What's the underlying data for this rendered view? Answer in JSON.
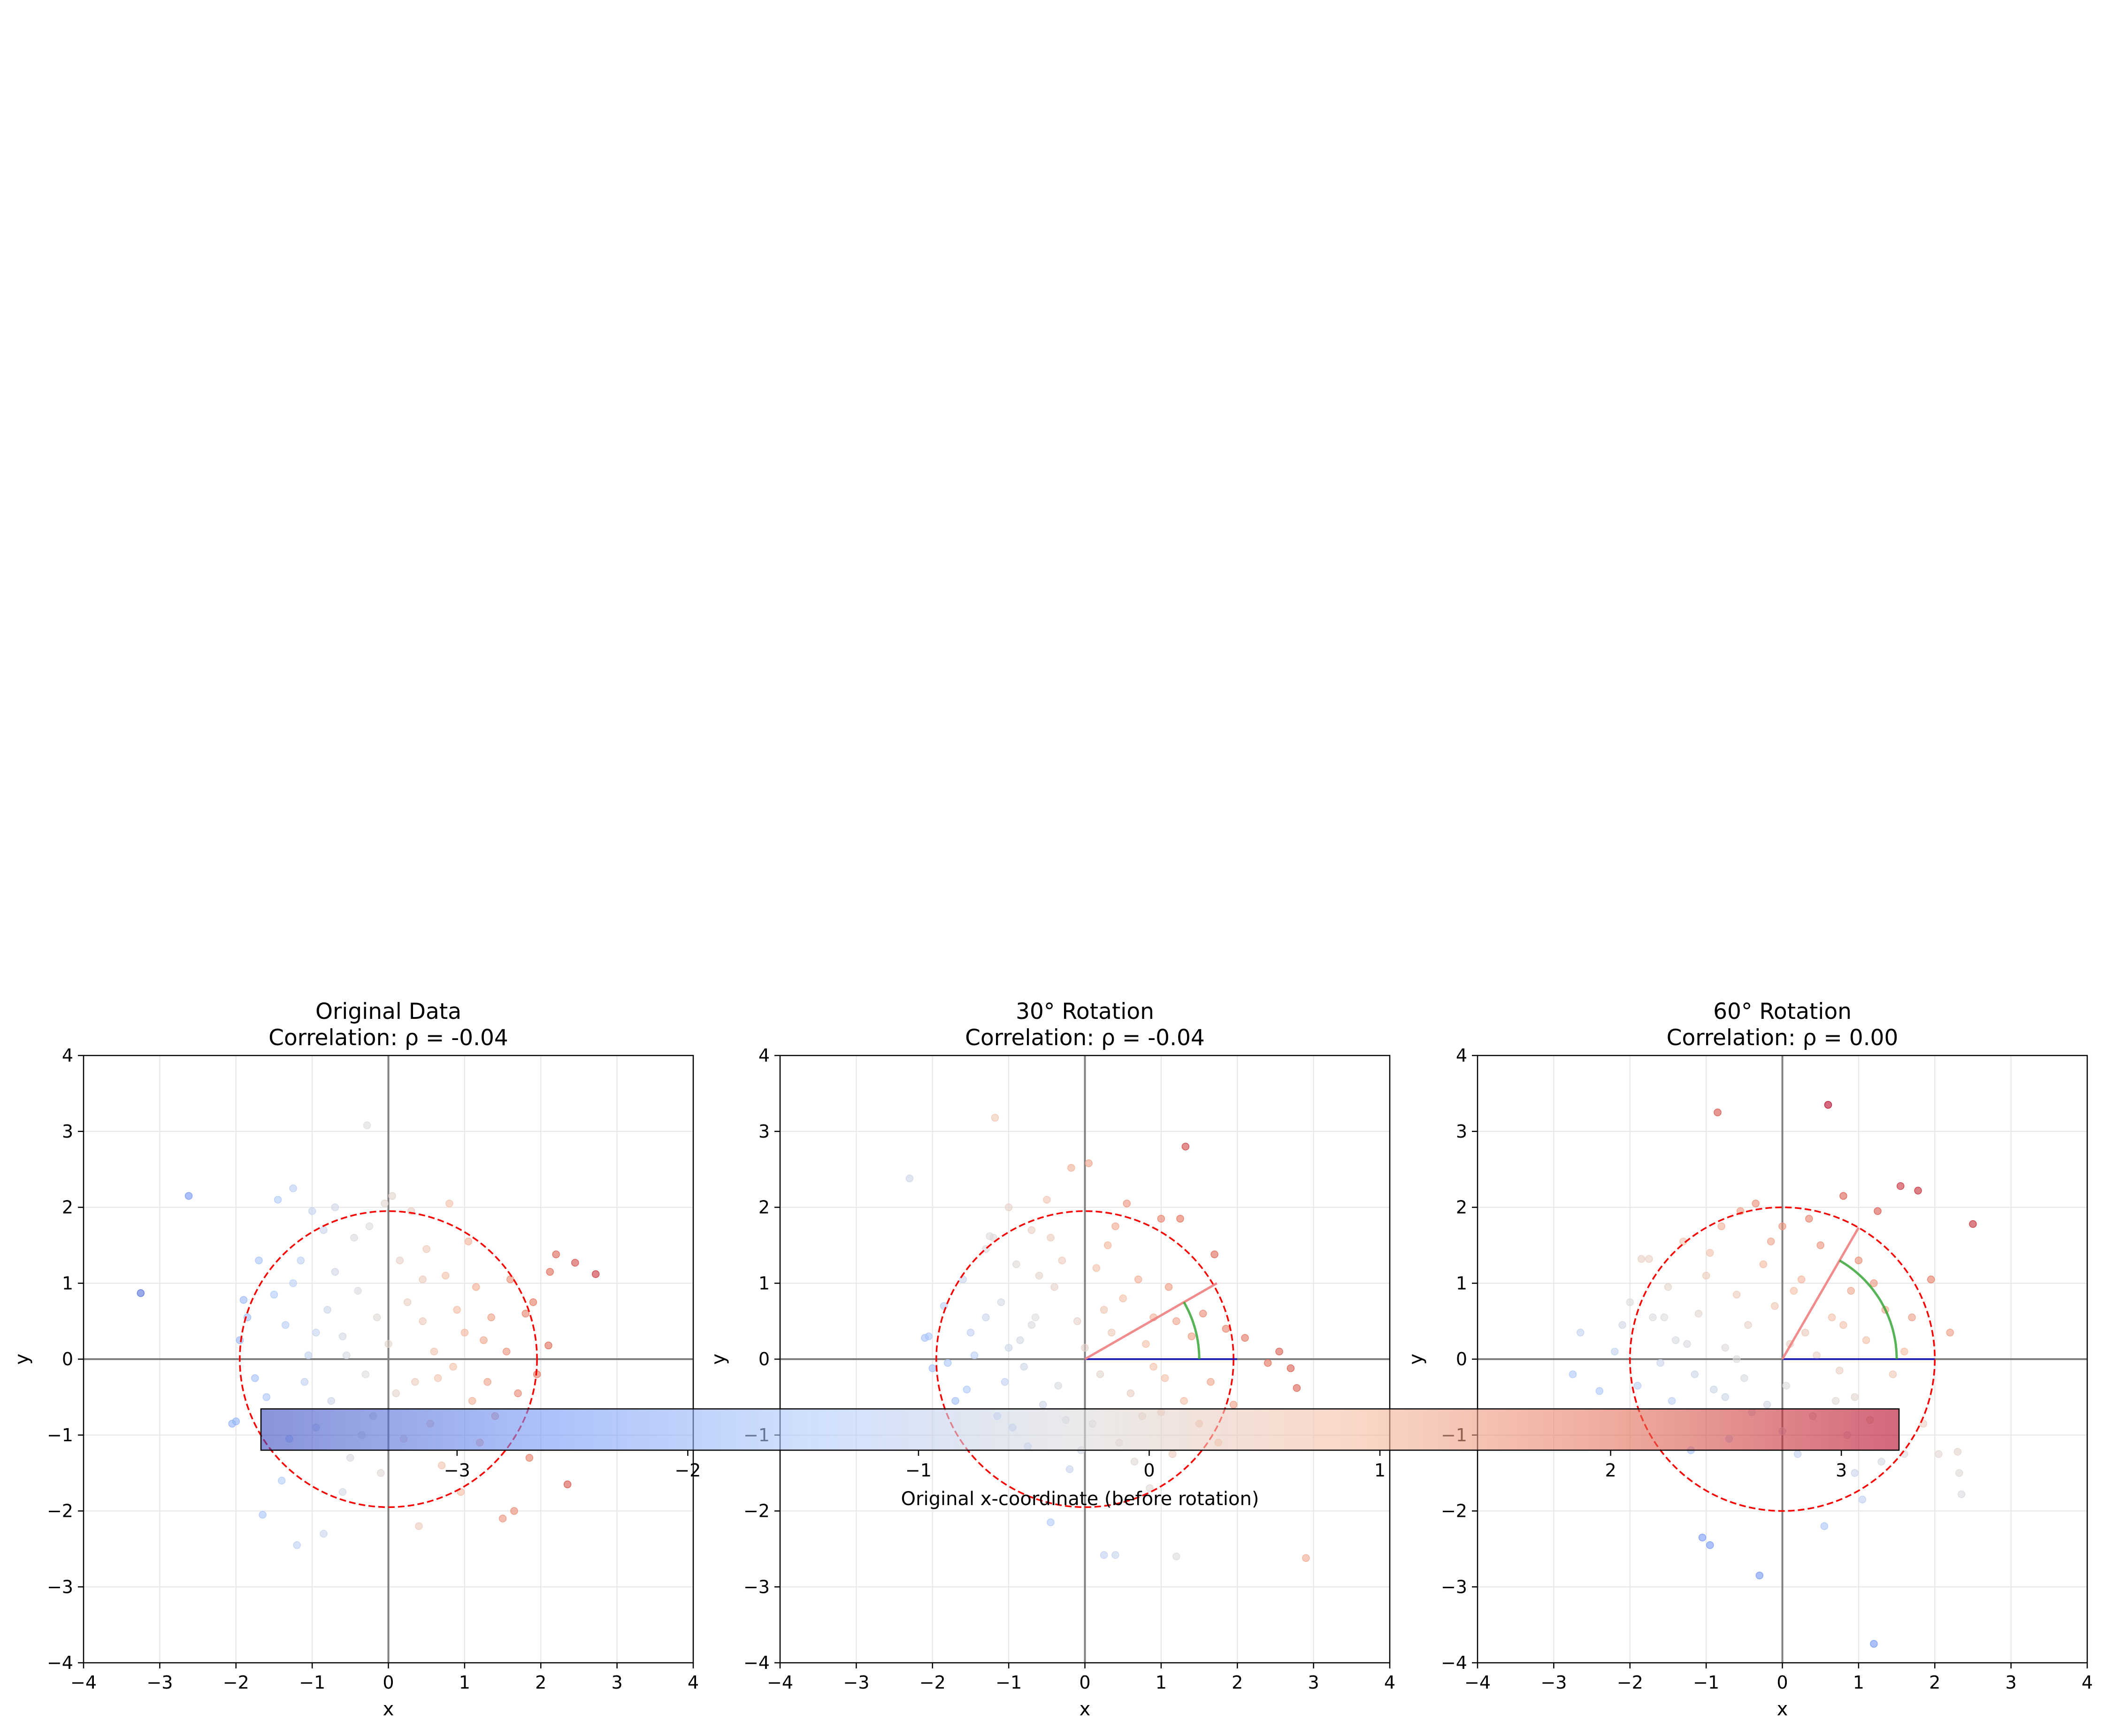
{
  "chart_data": [
    {
      "type": "scatter",
      "title": "Original Data\nCorrelation: ρ = -0.04",
      "title_lines": [
        "Original Data",
        "Correlation: ρ = -0.04"
      ],
      "xlabel": "x",
      "ylabel": "y",
      "xlim": [
        -4,
        4
      ],
      "ylim": [
        -4,
        4
      ],
      "xticks": [
        "−4",
        "−3",
        "−2",
        "−1",
        "0",
        "1",
        "2",
        "3",
        "4"
      ],
      "yticks": [
        "−4",
        "−3",
        "−2",
        "−1",
        "0",
        "1",
        "2",
        "3",
        "4"
      ],
      "grid": true,
      "rotation_deg": 0,
      "circle_radius": 1.95,
      "points": [
        [
          -3.25,
          0.87
        ],
        [
          -2.62,
          2.15
        ],
        [
          -2.05,
          -0.85
        ],
        [
          -2.0,
          -0.82
        ],
        [
          -1.95,
          0.25
        ],
        [
          -1.9,
          0.78
        ],
        [
          -1.85,
          0.55
        ],
        [
          -1.75,
          -0.25
        ],
        [
          -1.7,
          1.3
        ],
        [
          -1.65,
          -2.05
        ],
        [
          -1.5,
          0.85
        ],
        [
          -1.45,
          2.1
        ],
        [
          -1.4,
          -1.6
        ],
        [
          -1.35,
          0.45
        ],
        [
          -1.25,
          2.25
        ],
        [
          -1.2,
          -2.45
        ],
        [
          -1.15,
          1.3
        ],
        [
          -1.1,
          -0.3
        ],
        [
          -1.05,
          0.05
        ],
        [
          -1.0,
          1.95
        ],
        [
          -0.95,
          -0.9
        ],
        [
          -0.85,
          1.7
        ],
        [
          -0.85,
          -2.3
        ],
        [
          -0.8,
          0.65
        ],
        [
          -0.75,
          -0.55
        ],
        [
          -0.7,
          1.15
        ],
        [
          -0.6,
          0.3
        ],
        [
          -0.5,
          -1.3
        ],
        [
          -0.45,
          1.6
        ],
        [
          -0.4,
          0.9
        ],
        [
          -0.3,
          -0.2
        ],
        [
          -0.28,
          3.08
        ],
        [
          -0.25,
          1.75
        ],
        [
          -0.2,
          -0.75
        ],
        [
          -0.15,
          0.55
        ],
        [
          -0.1,
          -1.5
        ],
        [
          -0.05,
          2.05
        ],
        [
          0.0,
          0.2
        ],
        [
          0.05,
          2.15
        ],
        [
          0.1,
          -0.45
        ],
        [
          0.15,
          1.3
        ],
        [
          0.2,
          -1.05
        ],
        [
          0.25,
          0.75
        ],
        [
          0.3,
          1.95
        ],
        [
          0.35,
          -0.3
        ],
        [
          0.4,
          -2.2
        ],
        [
          0.45,
          0.5
        ],
        [
          0.5,
          1.45
        ],
        [
          0.55,
          -0.85
        ],
        [
          0.6,
          0.1
        ],
        [
          0.7,
          -1.4
        ],
        [
          0.75,
          1.1
        ],
        [
          0.8,
          2.05
        ],
        [
          0.85,
          -0.1
        ],
        [
          0.9,
          0.65
        ],
        [
          0.95,
          -1.75
        ],
        [
          1.0,
          0.35
        ],
        [
          1.05,
          1.55
        ],
        [
          1.1,
          -0.55
        ],
        [
          1.15,
          0.95
        ],
        [
          1.2,
          -1.1
        ],
        [
          1.3,
          -0.3
        ],
        [
          1.35,
          0.55
        ],
        [
          1.4,
          -0.75
        ],
        [
          1.5,
          -2.1
        ],
        [
          1.55,
          0.1
        ],
        [
          1.6,
          1.05
        ],
        [
          1.65,
          -2.0
        ],
        [
          1.7,
          -0.45
        ],
        [
          1.8,
          0.6
        ],
        [
          1.85,
          -1.3
        ],
        [
          1.9,
          0.75
        ],
        [
          1.95,
          -0.2
        ],
        [
          2.1,
          0.18
        ],
        [
          2.12,
          1.15
        ],
        [
          2.2,
          1.38
        ],
        [
          2.35,
          -1.65
        ],
        [
          2.45,
          1.27
        ],
        [
          2.72,
          1.12
        ],
        [
          -1.6,
          -0.5
        ],
        [
          -1.3,
          -1.05
        ],
        [
          -0.6,
          -1.75
        ],
        [
          -0.95,
          0.35
        ],
        [
          -0.55,
          0.05
        ],
        [
          0.65,
          -0.25
        ],
        [
          1.25,
          0.25
        ],
        [
          -1.25,
          1.0
        ],
        [
          -0.35,
          -1.0
        ],
        [
          0.45,
          1.05
        ],
        [
          -0.7,
          2.0
        ]
      ]
    },
    {
      "type": "scatter",
      "title": "30° Rotation\nCorrelation: ρ = -0.04",
      "title_lines": [
        "30° Rotation",
        "Correlation: ρ = -0.04"
      ],
      "xlabel": "x",
      "ylabel": "y",
      "xlim": [
        -4,
        4
      ],
      "ylim": [
        -4,
        4
      ],
      "xticks": [
        "−4",
        "−3",
        "−2",
        "−1",
        "0",
        "1",
        "2",
        "3",
        "4"
      ],
      "yticks": [
        "−4",
        "−3",
        "−2",
        "−1",
        "0",
        "1",
        "2",
        "3",
        "4"
      ],
      "grid": true,
      "rotation_deg": 30,
      "circle_radius": 1.95,
      "points": [
        [
          -2.3,
          2.38
        ],
        [
          -2.1,
          0.28
        ],
        [
          -2.05,
          0.3
        ],
        [
          -2.0,
          -0.12
        ],
        [
          -1.85,
          0.7
        ],
        [
          -1.8,
          -0.05
        ],
        [
          -1.7,
          -0.55
        ],
        [
          -1.6,
          1.05
        ],
        [
          -1.5,
          0.35
        ],
        [
          -1.45,
          0.05
        ],
        [
          -1.3,
          1.45
        ],
        [
          -1.25,
          1.62
        ],
        [
          -1.2,
          1.6
        ],
        [
          -1.18,
          3.18
        ],
        [
          -1.1,
          0.75
        ],
        [
          -1.05,
          -0.3
        ],
        [
          -1.0,
          2.0
        ],
        [
          -0.95,
          -0.9
        ],
        [
          -0.9,
          1.25
        ],
        [
          -0.85,
          0.25
        ],
        [
          -0.75,
          -1.15
        ],
        [
          -0.7,
          1.7
        ],
        [
          -0.65,
          0.55
        ],
        [
          -0.55,
          -0.6
        ],
        [
          -0.5,
          2.1
        ],
        [
          -0.45,
          -2.15
        ],
        [
          -0.4,
          0.95
        ],
        [
          -0.35,
          -0.35
        ],
        [
          -0.3,
          1.3
        ],
        [
          -0.2,
          -1.45
        ],
        [
          -0.18,
          2.52
        ],
        [
          -0.1,
          0.5
        ],
        [
          0.05,
          2.58
        ],
        [
          0.1,
          -0.85
        ],
        [
          0.15,
          1.2
        ],
        [
          0.2,
          -0.2
        ],
        [
          0.25,
          -2.58
        ],
        [
          0.3,
          1.5
        ],
        [
          0.35,
          0.35
        ],
        [
          0.4,
          -2.58
        ],
        [
          0.45,
          -1.1
        ],
        [
          0.5,
          0.8
        ],
        [
          0.55,
          2.05
        ],
        [
          0.6,
          -0.45
        ],
        [
          0.7,
          1.05
        ],
        [
          0.75,
          -0.75
        ],
        [
          0.8,
          0.2
        ],
        [
          0.85,
          -1.7
        ],
        [
          0.9,
          0.55
        ],
        [
          1.0,
          1.85
        ],
        [
          1.05,
          -0.25
        ],
        [
          1.1,
          0.95
        ],
        [
          1.15,
          -1.25
        ],
        [
          1.2,
          -2.6
        ],
        [
          1.25,
          1.85
        ],
        [
          1.3,
          -0.55
        ],
        [
          1.32,
          2.8
        ],
        [
          1.4,
          0.3
        ],
        [
          1.5,
          -0.85
        ],
        [
          1.55,
          0.6
        ],
        [
          1.65,
          -0.3
        ],
        [
          1.7,
          1.38
        ],
        [
          1.75,
          -1.1
        ],
        [
          1.85,
          0.4
        ],
        [
          1.95,
          -0.6
        ],
        [
          2.1,
          0.28
        ],
        [
          2.4,
          -0.05
        ],
        [
          2.55,
          0.1
        ],
        [
          2.7,
          -0.12
        ],
        [
          2.78,
          -0.38
        ],
        [
          2.9,
          -2.62
        ],
        [
          -1.3,
          0.55
        ],
        [
          -0.8,
          -0.1
        ],
        [
          -0.6,
          1.1
        ],
        [
          0.0,
          0.15
        ],
        [
          0.65,
          -1.35
        ],
        [
          -1.0,
          0.15
        ],
        [
          1.2,
          0.5
        ],
        [
          -0.25,
          -0.8
        ],
        [
          0.4,
          1.75
        ],
        [
          -1.55,
          -0.4
        ],
        [
          -0.45,
          1.6
        ],
        [
          0.9,
          -0.1
        ],
        [
          -0.05,
          -1.2
        ],
        [
          -1.15,
          -0.75
        ],
        [
          0.25,
          0.65
        ],
        [
          1.0,
          -0.7
        ],
        [
          -0.7,
          0.45
        ]
      ]
    },
    {
      "type": "scatter",
      "title": "60° Rotation\nCorrelation: ρ = 0.00",
      "title_lines": [
        "60° Rotation",
        "Correlation: ρ = 0.00"
      ],
      "xlabel": "x",
      "ylabel": "y",
      "xlim": [
        -4,
        4
      ],
      "ylim": [
        -4,
        4
      ],
      "xticks": [
        "−4",
        "−3",
        "−2",
        "−1",
        "0",
        "1",
        "2",
        "3",
        "4"
      ],
      "yticks": [
        "−4",
        "−3",
        "−2",
        "−1",
        "0",
        "1",
        "2",
        "3",
        "4"
      ],
      "grid": true,
      "rotation_deg": 60,
      "circle_radius": 2.0,
      "points": [
        [
          -2.65,
          0.35
        ],
        [
          -2.75,
          -0.2
        ],
        [
          -2.4,
          -0.42
        ],
        [
          -2.2,
          0.1
        ],
        [
          -2.1,
          0.45
        ],
        [
          -2.0,
          0.75
        ],
        [
          -1.9,
          -0.35
        ],
        [
          -1.85,
          1.32
        ],
        [
          -1.75,
          1.32
        ],
        [
          -1.7,
          0.55
        ],
        [
          -1.6,
          -0.05
        ],
        [
          -1.5,
          0.95
        ],
        [
          -1.45,
          -0.55
        ],
        [
          -1.4,
          0.25
        ],
        [
          -1.3,
          1.55
        ],
        [
          -1.2,
          -1.2
        ],
        [
          -1.1,
          0.6
        ],
        [
          -1.05,
          -2.35
        ],
        [
          -1.0,
          1.1
        ],
        [
          -0.95,
          -2.45
        ],
        [
          -0.9,
          -0.4
        ],
        [
          -0.85,
          3.25
        ],
        [
          -0.8,
          1.75
        ],
        [
          -0.75,
          0.15
        ],
        [
          -0.7,
          -1.05
        ],
        [
          -0.6,
          0.85
        ],
        [
          -0.55,
          1.95
        ],
        [
          -0.5,
          -0.25
        ],
        [
          -0.45,
          0.45
        ],
        [
          -0.35,
          2.05
        ],
        [
          -0.3,
          -2.85
        ],
        [
          -0.25,
          1.25
        ],
        [
          -0.2,
          -0.6
        ],
        [
          -0.1,
          0.7
        ],
        [
          0.0,
          1.75
        ],
        [
          0.05,
          -0.35
        ],
        [
          0.1,
          0.2
        ],
        [
          0.2,
          -1.25
        ],
        [
          0.25,
          1.05
        ],
        [
          0.3,
          0.35
        ],
        [
          0.4,
          -0.75
        ],
        [
          0.5,
          1.5
        ],
        [
          0.55,
          -2.2
        ],
        [
          0.6,
          3.35
        ],
        [
          0.65,
          0.55
        ],
        [
          0.75,
          -0.15
        ],
        [
          0.8,
          2.15
        ],
        [
          0.85,
          -1.0
        ],
        [
          0.9,
          0.9
        ],
        [
          0.95,
          -0.5
        ],
        [
          1.0,
          1.3
        ],
        [
          1.05,
          -1.85
        ],
        [
          1.1,
          0.25
        ],
        [
          1.15,
          -0.8
        ],
        [
          1.2,
          -3.75
        ],
        [
          1.25,
          1.95
        ],
        [
          1.3,
          -1.35
        ],
        [
          1.35,
          0.65
        ],
        [
          1.45,
          -0.2
        ],
        [
          1.55,
          2.28
        ],
        [
          1.6,
          -1.25
        ],
        [
          1.7,
          0.55
        ],
        [
          1.78,
          2.22
        ],
        [
          1.85,
          -0.85
        ],
        [
          1.95,
          1.05
        ],
        [
          2.05,
          -1.25
        ],
        [
          2.2,
          0.35
        ],
        [
          2.3,
          -1.22
        ],
        [
          2.32,
          -1.5
        ],
        [
          2.35,
          -1.78
        ],
        [
          2.5,
          1.78
        ],
        [
          -1.25,
          0.2
        ],
        [
          -0.6,
          0.0
        ],
        [
          0.15,
          0.9
        ],
        [
          0.7,
          -0.55
        ],
        [
          -0.95,
          1.4
        ],
        [
          -0.4,
          -0.7
        ],
        [
          0.45,
          0.05
        ],
        [
          1.2,
          1.0
        ],
        [
          -1.55,
          0.55
        ],
        [
          -0.15,
          1.55
        ],
        [
          0.95,
          -1.5
        ],
        [
          -0.75,
          -0.5
        ],
        [
          0.35,
          1.85
        ],
        [
          1.6,
          0.1
        ],
        [
          -1.15,
          -0.2
        ],
        [
          0.0,
          -0.95
        ],
        [
          0.8,
          0.45
        ]
      ]
    }
  ],
  "colorbar": {
    "label": "Original x-coordinate (before rotation)",
    "ticks": [
      "−3",
      "−2",
      "−1",
      "0",
      "1",
      "2",
      "3"
    ],
    "range": [
      -3.85,
      3.25
    ],
    "colormap": "coolwarm",
    "colors": [
      "#3b4cc0",
      "#7396f5",
      "#b0cbfc",
      "#dddcdc",
      "#f6bea4",
      "#e36f58",
      "#b40426"
    ]
  },
  "guides": {
    "circle_color": "#ff0000",
    "rotation_line_color": "#f08080",
    "angle_arc_color": "#2ca02c",
    "reference_line_color": "#0000cd",
    "axis_line_color": "#808080"
  }
}
